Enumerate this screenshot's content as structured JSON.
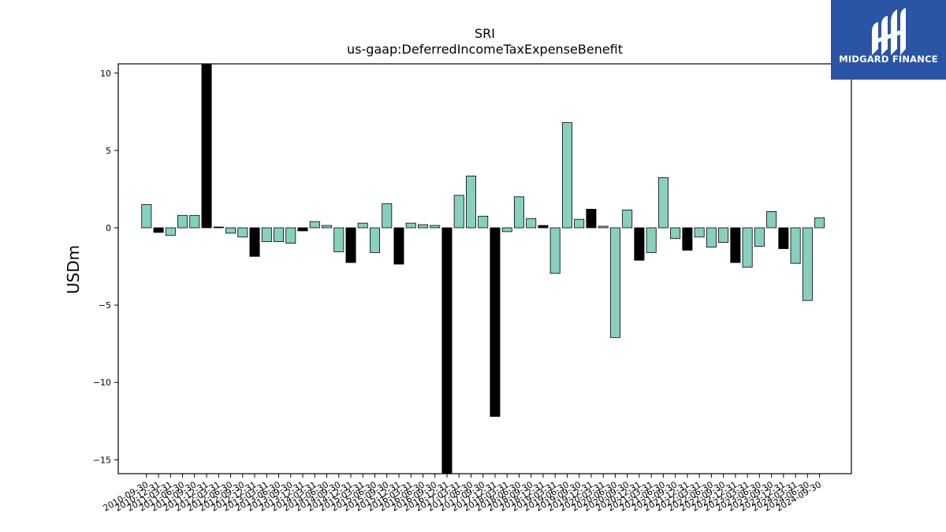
{
  "brand": {
    "name": "MIDGARD FINANCE",
    "bg_color": "#2a55a5",
    "icon": "midgard-m-logo-icon"
  },
  "chart_data": {
    "type": "bar",
    "title": "SRI",
    "subtitle": "us-gaap:DeferredIncomeTaxExpenseBenefit",
    "xlabel": "",
    "ylabel": "USDm",
    "ylim": [
      -15.9,
      10.6
    ],
    "yticks": [
      10,
      5,
      0,
      -5,
      -10,
      -15
    ],
    "grid": false,
    "colors": {
      "default": "#88cfc0",
      "highlight": "#000000",
      "edge": "#000000"
    },
    "categories": [
      "2010-09-30",
      "2010-12-31",
      "2011-03-31",
      "2011-06-30",
      "2011-09-30",
      "2011-12-31",
      "2012-03-31",
      "2012-06-30",
      "2012-09-30",
      "2012-12-31",
      "2013-03-31",
      "2013-06-30",
      "2013-09-30",
      "2013-12-31",
      "2014-03-31",
      "2014-06-30",
      "2014-09-30",
      "2014-12-31",
      "2015-03-31",
      "2015-06-30",
      "2015-09-30",
      "2015-12-31",
      "2016-03-31",
      "2016-06-30",
      "2016-09-30",
      "2016-12-31",
      "2017-03-31",
      "2017-06-30",
      "2017-09-30",
      "2017-12-31",
      "2018-03-31",
      "2018-06-30",
      "2018-09-30",
      "2018-12-31",
      "2019-03-31",
      "2019-06-30",
      "2019-09-30",
      "2019-12-31",
      "2020-03-31",
      "2020-06-30",
      "2020-09-30",
      "2020-12-31",
      "2021-03-31",
      "2021-06-30",
      "2021-09-30",
      "2021-12-31",
      "2022-03-31",
      "2022-06-30",
      "2022-09-30",
      "2022-12-31",
      "2023-03-31",
      "2023-06-30",
      "2023-09-30",
      "2023-12-31",
      "2024-03-31",
      "2024-06-30",
      "2024-09-30"
    ],
    "values": [
      1.5,
      -0.3,
      -0.5,
      0.8,
      0.8,
      10.7,
      0.05,
      -0.35,
      -0.6,
      -1.85,
      -0.9,
      -0.9,
      -1.0,
      -0.2,
      0.4,
      0.15,
      -1.55,
      -2.25,
      0.3,
      -1.6,
      1.55,
      -2.35,
      0.3,
      0.2,
      0.15,
      -16.0,
      2.1,
      3.35,
      0.75,
      -12.2,
      -0.25,
      2.0,
      0.6,
      0.15,
      -2.95,
      6.8,
      0.55,
      1.2,
      0.1,
      -7.1,
      1.15,
      -2.1,
      -1.6,
      3.25,
      -0.7,
      -1.45,
      -0.6,
      -1.25,
      -0.95,
      -2.25,
      -2.55,
      -1.2,
      1.05,
      -1.35,
      -2.3,
      -4.7,
      0.65
    ],
    "highlight": [
      false,
      true,
      false,
      false,
      false,
      true,
      true,
      false,
      false,
      true,
      false,
      false,
      false,
      true,
      false,
      false,
      false,
      true,
      false,
      false,
      false,
      true,
      false,
      false,
      false,
      true,
      false,
      false,
      false,
      true,
      false,
      false,
      false,
      true,
      false,
      false,
      false,
      true,
      false,
      false,
      false,
      true,
      false,
      false,
      false,
      true,
      false,
      false,
      false,
      true,
      false,
      false,
      false,
      true,
      false,
      false,
      false
    ]
  }
}
